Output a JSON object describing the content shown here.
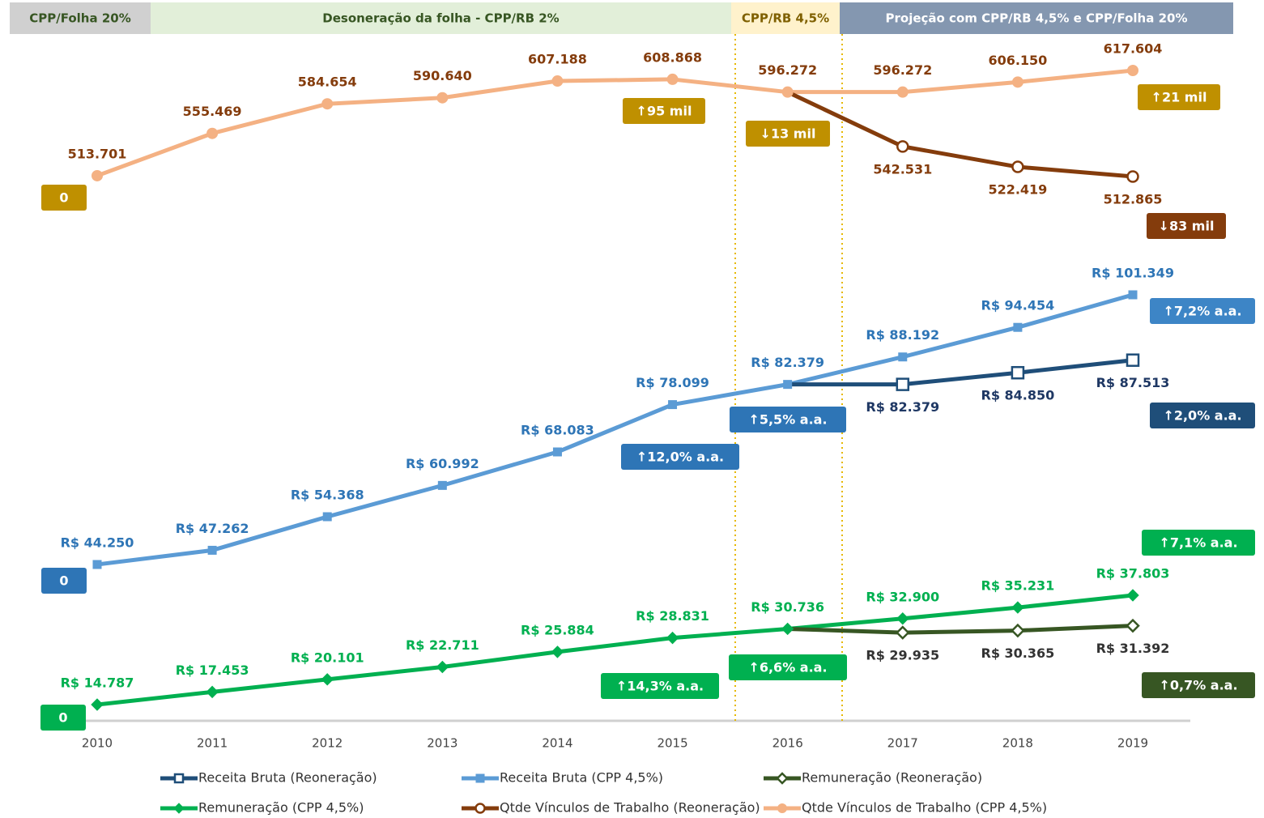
{
  "chart_data": {
    "type": "line",
    "periods": [
      {
        "label": "CPP/Folha 20%",
        "color": "#d0d0d0",
        "text_color": "#375623"
      },
      {
        "label": "Desoneração da folha - CPP/RB 2%",
        "color": "#e2efd9",
        "text_color": "#375623"
      },
      {
        "label": "CPP/RB 4,5%",
        "color": "#fff2cc",
        "text_color": "#7f6000"
      },
      {
        "label": "Projeção com CPP/RB 4,5% e CPP/Folha 20%",
        "color": "#8497b0",
        "text_color": "#ffffff"
      }
    ],
    "categories": [
      "2010",
      "2011",
      "2012",
      "2013",
      "2014",
      "2015",
      "2016",
      "2017",
      "2018",
      "2019"
    ],
    "series": [
      {
        "name": "Receita Bruta (Reoneração)",
        "color": "#1f4e79",
        "label_color": "#1f3864",
        "marker": "square",
        "filled": false,
        "values": [
          null,
          null,
          null,
          null,
          null,
          null,
          82379,
          82379,
          84850,
          87513
        ],
        "value_labels": [
          null,
          null,
          null,
          null,
          null,
          null,
          null,
          "R$ 82.379",
          "R$ 84.850",
          "R$ 87.513"
        ]
      },
      {
        "name": "Receita Bruta (CPP 4,5%)",
        "color": "#5b9bd5",
        "label_color": "#2e75b6",
        "marker": "square",
        "filled": true,
        "values": [
          44250,
          47262,
          54368,
          60992,
          68083,
          78099,
          82379,
          88192,
          94454,
          101349
        ],
        "value_labels": [
          "R$ 44.250",
          "R$ 47.262",
          "R$ 54.368",
          "R$ 60.992",
          "R$ 68.083",
          "R$ 78.099",
          "R$ 82.379",
          "R$ 88.192",
          "R$ 94.454",
          "R$ 101.349"
        ]
      },
      {
        "name": "Remuneração (Reoneração)",
        "color": "#375623",
        "label_color": "#333333",
        "marker": "diamond",
        "filled": false,
        "values": [
          null,
          null,
          null,
          null,
          null,
          null,
          30736,
          29935,
          30365,
          31392
        ],
        "value_labels": [
          null,
          null,
          null,
          null,
          null,
          null,
          null,
          "R$ 29.935",
          "R$ 30.365",
          "R$ 31.392"
        ]
      },
      {
        "name": "Remuneração (CPP 4,5%)",
        "color": "#00b050",
        "label_color": "#00b050",
        "marker": "diamond",
        "filled": true,
        "values": [
          14787,
          17453,
          20101,
          22711,
          25884,
          28831,
          30736,
          32900,
          35231,
          37803
        ],
        "value_labels": [
          "R$ 14.787",
          "R$ 17.453",
          "R$ 20.101",
          "R$ 22.711",
          "R$ 25.884",
          "R$ 28.831",
          "R$ 30.736",
          "R$ 32.900",
          "R$ 35.231",
          "R$ 37.803"
        ]
      },
      {
        "name": "Qtde Vínculos de Trabalho (Reoneração)",
        "color": "#843c0c",
        "label_color": "#843c0c",
        "marker": "circle",
        "filled": false,
        "values": [
          null,
          null,
          null,
          null,
          null,
          null,
          596272,
          542531,
          522419,
          512865
        ],
        "value_labels": [
          null,
          null,
          null,
          null,
          null,
          null,
          null,
          "542.531",
          "522.419",
          "512.865"
        ]
      },
      {
        "name": "Qtde Vínculos de Trabalho (CPP 4,5%)",
        "color": "#f4b183",
        "label_color": "#843c0c",
        "marker": "circle",
        "filled": true,
        "values": [
          513701,
          555469,
          584654,
          590640,
          607188,
          608868,
          596272,
          596272,
          606150,
          617604
        ],
        "value_labels": [
          "513.701",
          "555.469",
          "584.654",
          "590.640",
          "607.188",
          "608.868",
          "596.272",
          "596.272",
          "606.150",
          "617.604"
        ]
      }
    ],
    "annotations": [
      {
        "text": "0",
        "color": "#bf9000"
      },
      {
        "text": "↑95 mil",
        "color": "#bf9000"
      },
      {
        "text": "↓13 mil",
        "color": "#bf9000"
      },
      {
        "text": "↑21 mil",
        "color": "#bf9000"
      },
      {
        "text": "↓83 mil",
        "color": "#843c0c"
      },
      {
        "text": "↑7,2% a.a.",
        "color": "#3d85c6"
      },
      {
        "text": "↑5,5% a.a.",
        "color": "#2e75b6"
      },
      {
        "text": "↑12,0% a.a.",
        "color": "#2e75b6"
      },
      {
        "text": "↑2,0% a.a.",
        "color": "#1f4e79"
      },
      {
        "text": "0",
        "color": "#2e75b6"
      },
      {
        "text": "↑7,1% a.a.",
        "color": "#00b050"
      },
      {
        "text": "↑6,6% a.a.",
        "color": "#00b050"
      },
      {
        "text": "↑14,3% a.a.",
        "color": "#00b050"
      },
      {
        "text": "↑0,7% a.a.",
        "color": "#375623"
      },
      {
        "text": "0",
        "color": "#00b050"
      }
    ]
  }
}
